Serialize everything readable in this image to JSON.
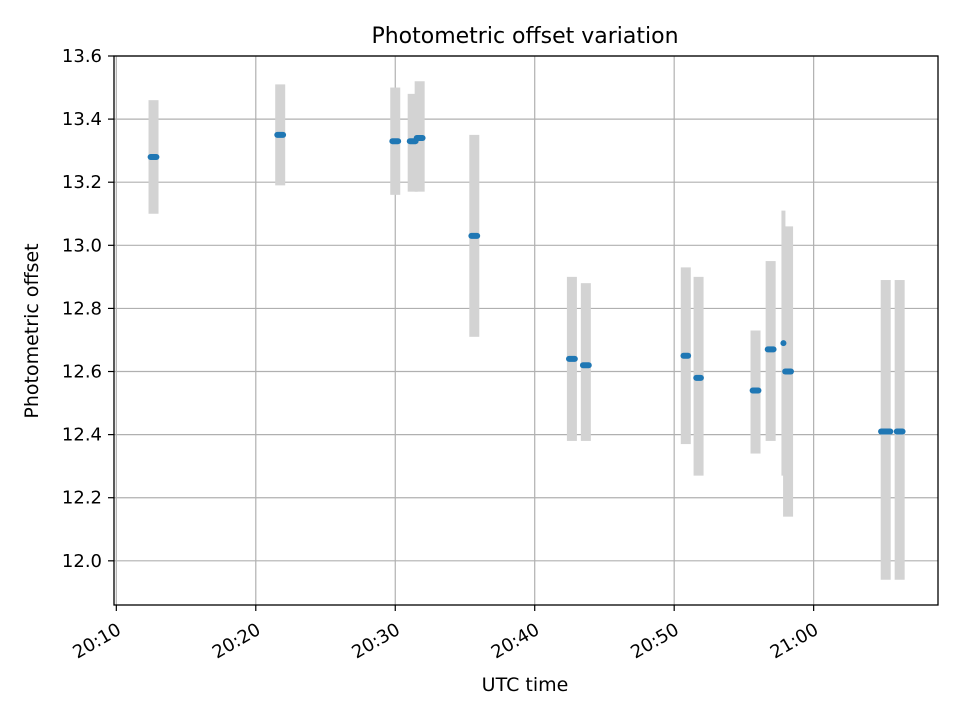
{
  "chart_data": {
    "type": "scatter",
    "title": "Photometric offset variation",
    "xlabel": "UTC time",
    "ylabel": "Photometric offset",
    "x_tick_labels": [
      "20:10",
      "20:20",
      "20:30",
      "20:40",
      "20:50",
      "21:00"
    ],
    "y_tick_labels": [
      "12.0",
      "12.2",
      "12.4",
      "12.6",
      "12.8",
      "13.0",
      "13.2",
      "13.4",
      "13.6"
    ],
    "xlim": [
      "20:09:50",
      "21:08:55"
    ],
    "ylim": [
      11.86,
      13.6
    ],
    "grid": true,
    "colors": {
      "points": "#1f77b4",
      "error_bars": "#d3d3d3",
      "grid": "#b0b0b0"
    },
    "points": [
      {
        "x": "20:12:40",
        "y": 13.28,
        "ylow": 13.1,
        "yhigh": 13.46,
        "spread_s": 25
      },
      {
        "x": "20:21:45",
        "y": 13.35,
        "ylow": 13.19,
        "yhigh": 13.51,
        "spread_s": 25
      },
      {
        "x": "20:30:00",
        "y": 13.33,
        "ylow": 13.16,
        "yhigh": 13.5,
        "spread_s": 25
      },
      {
        "x": "20:31:15",
        "y": 13.33,
        "ylow": 13.17,
        "yhigh": 13.48,
        "spread_s": 25
      },
      {
        "x": "20:31:45",
        "y": 13.34,
        "ylow": 13.17,
        "yhigh": 13.52,
        "spread_s": 25
      },
      {
        "x": "20:35:40",
        "y": 13.03,
        "ylow": 12.71,
        "yhigh": 13.35,
        "spread_s": 25
      },
      {
        "x": "20:42:40",
        "y": 12.64,
        "ylow": 12.38,
        "yhigh": 12.9,
        "spread_s": 25
      },
      {
        "x": "20:43:40",
        "y": 12.62,
        "ylow": 12.38,
        "yhigh": 12.88,
        "spread_s": 25
      },
      {
        "x": "20:50:50",
        "y": 12.65,
        "ylow": 12.37,
        "yhigh": 12.93,
        "spread_s": 20
      },
      {
        "x": "20:51:45",
        "y": 12.58,
        "ylow": 12.27,
        "yhigh": 12.9,
        "spread_s": 20
      },
      {
        "x": "20:55:50",
        "y": 12.54,
        "ylow": 12.34,
        "yhigh": 12.73,
        "spread_s": 25
      },
      {
        "x": "20:56:55",
        "y": 12.67,
        "ylow": 12.38,
        "yhigh": 12.95,
        "spread_s": 25
      },
      {
        "x": "20:57:50",
        "y": 12.69,
        "ylow": 12.27,
        "yhigh": 13.11,
        "spread_s": 0
      },
      {
        "x": "20:58:10",
        "y": 12.6,
        "ylow": 12.14,
        "yhigh": 13.06,
        "spread_s": 25
      },
      {
        "x": "21:05:10",
        "y": 12.41,
        "ylow": 11.94,
        "yhigh": 12.89,
        "spread_s": 40
      },
      {
        "x": "21:06:10",
        "y": 12.41,
        "ylow": 11.94,
        "yhigh": 12.89,
        "spread_s": 25
      }
    ]
  }
}
